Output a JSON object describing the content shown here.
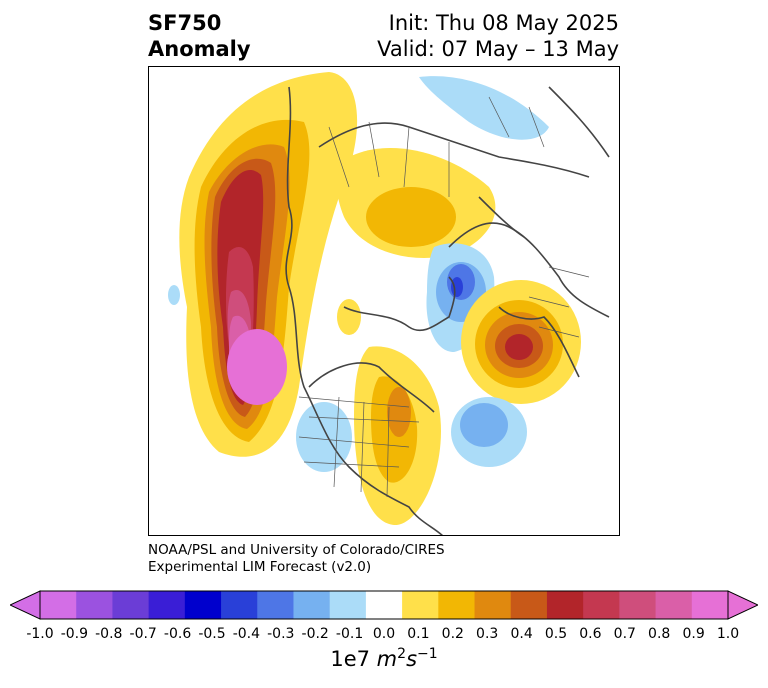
{
  "title": {
    "variable": "SF750",
    "kind": "Anomaly",
    "init": "Init: Thu 08 May 2025",
    "valid": "Valid: 07 May – 13 May"
  },
  "credit": {
    "line1": "NOAA/PSL and University of Colorado/CIRES",
    "line2": "Experimental LIM Forecast (v2.0)"
  },
  "colorbar": {
    "colors": [
      "#d36ee6",
      "#9b52e0",
      "#6b3dd6",
      "#3a1ed6",
      "#0000cd",
      "#2940d8",
      "#4e76e6",
      "#76b1f0",
      "#abdcf8",
      "#ffffff",
      "#ffe04a",
      "#f2b704",
      "#e0890f",
      "#c85918",
      "#b2252a",
      "#c43850",
      "#cf4e7c",
      "#da5fa8",
      "#e670d6"
    ],
    "ticks": [
      "-1.0",
      "-0.9",
      "-0.8",
      "-0.7",
      "-0.6",
      "-0.5",
      "-0.4",
      "-0.3",
      "-0.2",
      "-0.1",
      "0.0",
      "0.1",
      "0.2",
      "0.3",
      "0.4",
      "0.5",
      "0.6",
      "0.7",
      "0.8",
      "0.9",
      "1.0"
    ],
    "units_prefix": "1e7 ",
    "units_m": "m",
    "units_m_exp": "2",
    "units_s": "s",
    "units_s_exp": "−1"
  }
}
